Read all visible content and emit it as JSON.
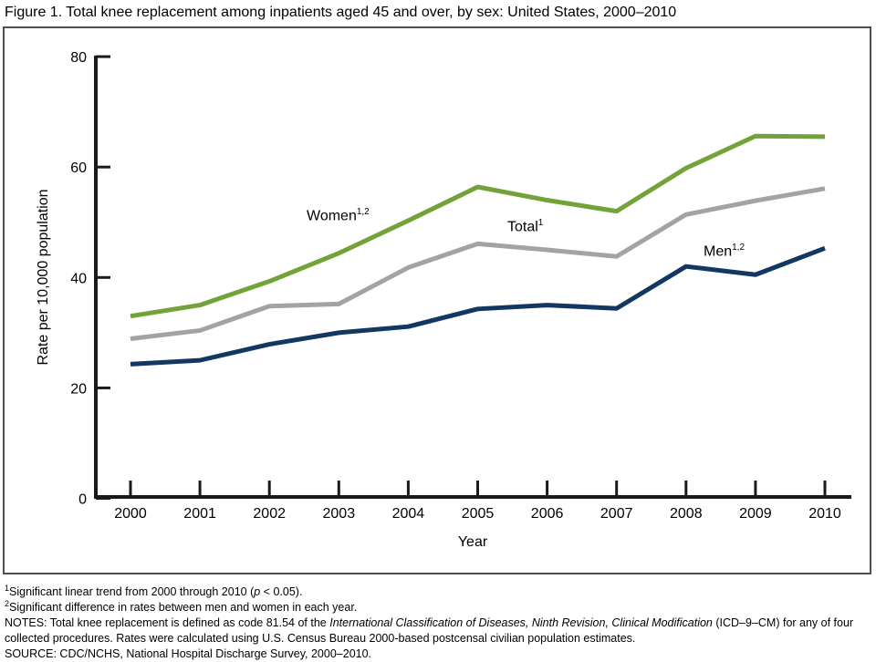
{
  "title": "Figure 1. Total knee replacement among inpatients aged 45 and over, by sex: United States, 2000–2010",
  "frame_color": "#4f4f4f",
  "axis_color": "#1a1a1a",
  "chart_data": {
    "type": "line",
    "title": "Figure 1. Total knee replacement among inpatients aged 45 and over, by sex: United States, 2000–2010",
    "x": [
      2000,
      2001,
      2002,
      2003,
      2004,
      2005,
      2006,
      2007,
      2008,
      2009,
      2010
    ],
    "xlabel": "Year",
    "ylabel": "Rate per 10,000 population",
    "ylim": [
      0,
      80
    ],
    "yticks": [
      0,
      20,
      40,
      60,
      80
    ],
    "grid": false,
    "legend": "inline-labels",
    "series": [
      {
        "name": "Women",
        "footnote_refs": "1,2",
        "color": "#73A239",
        "values": [
          33.0,
          35.0,
          39.3,
          44.4,
          50.3,
          56.4,
          54.0,
          52.0,
          59.8,
          65.6,
          65.5
        ]
      },
      {
        "name": "Total",
        "footnote_refs": "1",
        "color": "#A3A3A6",
        "values": [
          28.9,
          30.4,
          34.8,
          35.2,
          41.8,
          46.1,
          45.0,
          43.8,
          51.4,
          53.9,
          56.1
        ]
      },
      {
        "name": "Men",
        "footnote_refs": "1,2",
        "color": "#123761",
        "values": [
          24.3,
          25.0,
          27.9,
          30.0,
          31.1,
          34.3,
          35.0,
          34.4,
          42.0,
          40.5,
          45.3
        ]
      }
    ]
  },
  "footnotes": [
    [
      {
        "sup": "1"
      },
      {
        "t": "Significant linear trend from 2000 through 2010 ("
      },
      {
        "i": "p"
      },
      {
        "t": " < 0.05)."
      }
    ],
    [
      {
        "sup": "2"
      },
      {
        "t": "Significant difference in rates between men and women in each year."
      }
    ],
    [
      {
        "t": "NOTES: Total knee replacement is defined as code 81.54 of the "
      },
      {
        "i": "International Classification of Diseases, Ninth Revision, Clinical Modification"
      },
      {
        "t": " (ICD–9–CM) for any of four collected procedures. Rates were calculated using U.S. Census Bureau 2000-based postcensal civilian population estimates."
      }
    ],
    [
      {
        "t": "SOURCE: CDC/NCHS, National Hospital Discharge Survey, 2000–2010."
      }
    ]
  ]
}
